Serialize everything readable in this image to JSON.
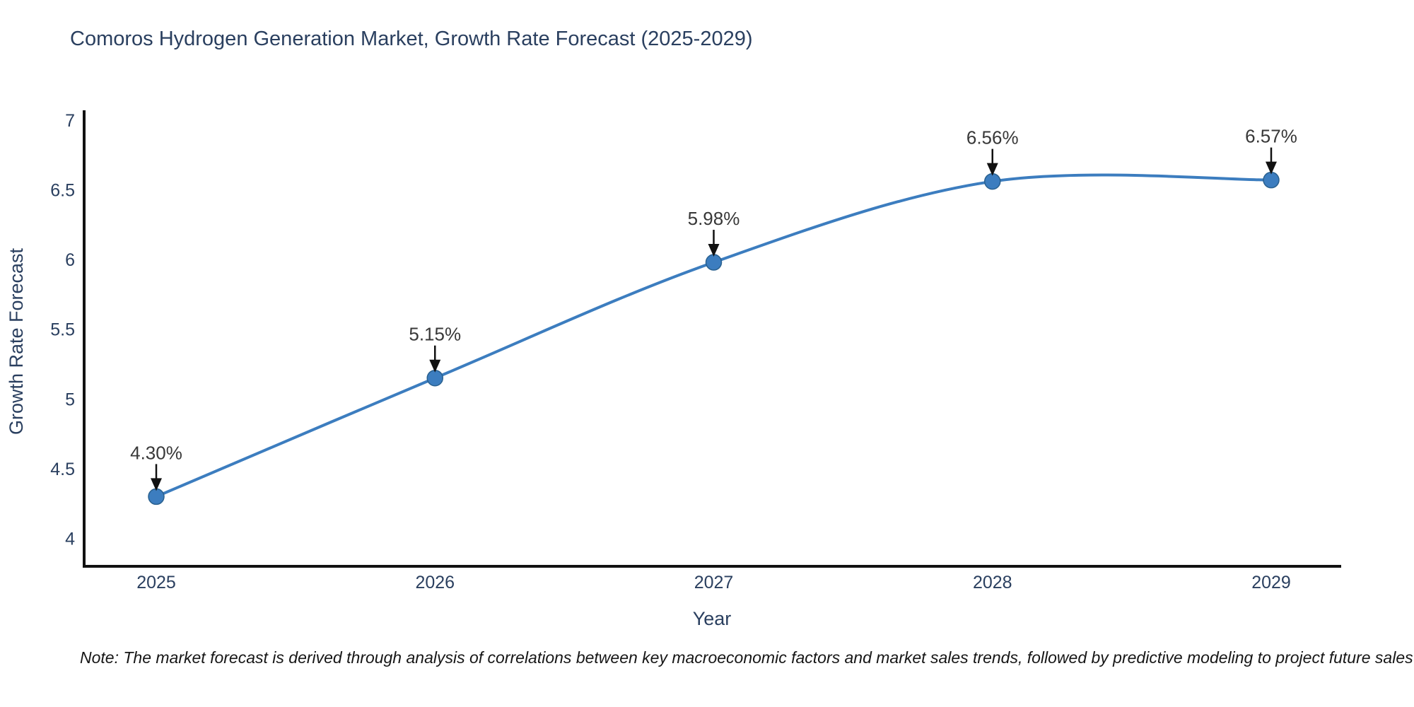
{
  "title": "Comoros Hydrogen Generation Market, Growth Rate Forecast (2025-2029)",
  "chart_data": {
    "type": "line",
    "x": [
      2025,
      2026,
      2027,
      2028,
      2029
    ],
    "series": [
      {
        "name": "Growth Rate Forecast",
        "values": [
          4.3,
          5.15,
          5.98,
          6.56,
          6.57
        ],
        "point_labels": [
          "4.30%",
          "5.15%",
          "5.98%",
          "6.56%",
          "6.57%"
        ]
      }
    ],
    "title": "Comoros Hydrogen Generation Market, Growth Rate Forecast (2025-2029)",
    "xlabel": "Year",
    "ylabel": "Growth Rate Forecast",
    "yticks": [
      4,
      4.5,
      5,
      5.5,
      6,
      6.5,
      7
    ],
    "ylim": [
      3.8,
      7.06
    ],
    "line_shape": "spline",
    "grid": false,
    "legend_visible": false,
    "annotations_have_arrows": true
  },
  "colors": {
    "line": "#3c7dbf",
    "marker_fill": "#3c7dbf",
    "marker_stroke": "#29608f",
    "axis_line": "#111111",
    "axis_text": "#2a3f5f",
    "annotation_text": "#383838",
    "annotation_arrow": "#111111",
    "title_text": "#2a3f5f",
    "background": "#ffffff"
  },
  "note": "Note: The market forecast is derived through analysis of correlations between key macroeconomic factors and market sales trends, followed by predictive modeling to project future sales"
}
